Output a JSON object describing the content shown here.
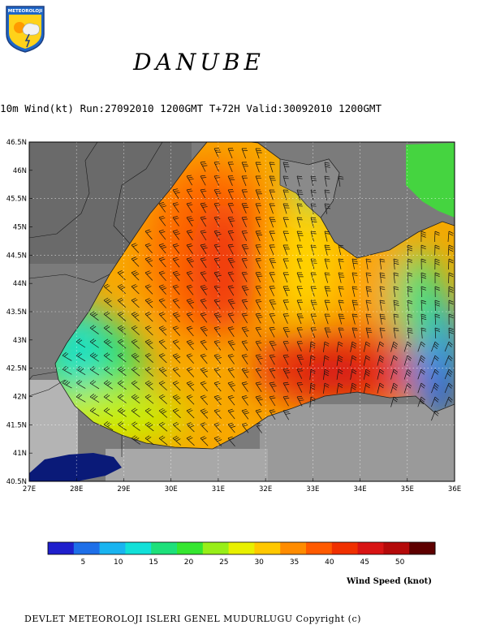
{
  "header": {
    "logo_text": "METEOROLOJI",
    "title": "DANUBE",
    "subtitle": "10m Wind(kt) Run:27092010 1200GMT T+72H Valid:30092010 1200GMT"
  },
  "map": {
    "lat_labels": [
      "46.5N",
      "46N",
      "45.5N",
      "45N",
      "44.5N",
      "44N",
      "43.5N",
      "43N",
      "42.5N",
      "42N",
      "41.5N",
      "41N",
      "40.5N"
    ],
    "lon_labels": [
      "27E",
      "28E",
      "29E",
      "30E",
      "31E",
      "32E",
      "33E",
      "34E",
      "35E",
      "36E"
    ],
    "lat_range": [
      40.5,
      46.5
    ],
    "lon_range": [
      27,
      36
    ],
    "grid": "dotted"
  },
  "colorbar": {
    "title": "Wind Speed (knot)",
    "ticks": [
      "5",
      "10",
      "15",
      "20",
      "25",
      "30",
      "35",
      "40",
      "45",
      "50"
    ],
    "range": [
      0,
      55
    ],
    "colors": [
      "#1f1fcc",
      "#1e6fe8",
      "#19b4f0",
      "#12e0d8",
      "#1de07a",
      "#35e630",
      "#98ee18",
      "#e8f000",
      "#ffc800",
      "#ff8c00",
      "#ff5a00",
      "#f03000",
      "#d81414",
      "#b40a0a",
      "#5e0000"
    ]
  },
  "footer": {
    "text": "DEVLET METEOROLOJI ISLERI GENEL MUDURLUGU   Copyright (c)"
  }
}
